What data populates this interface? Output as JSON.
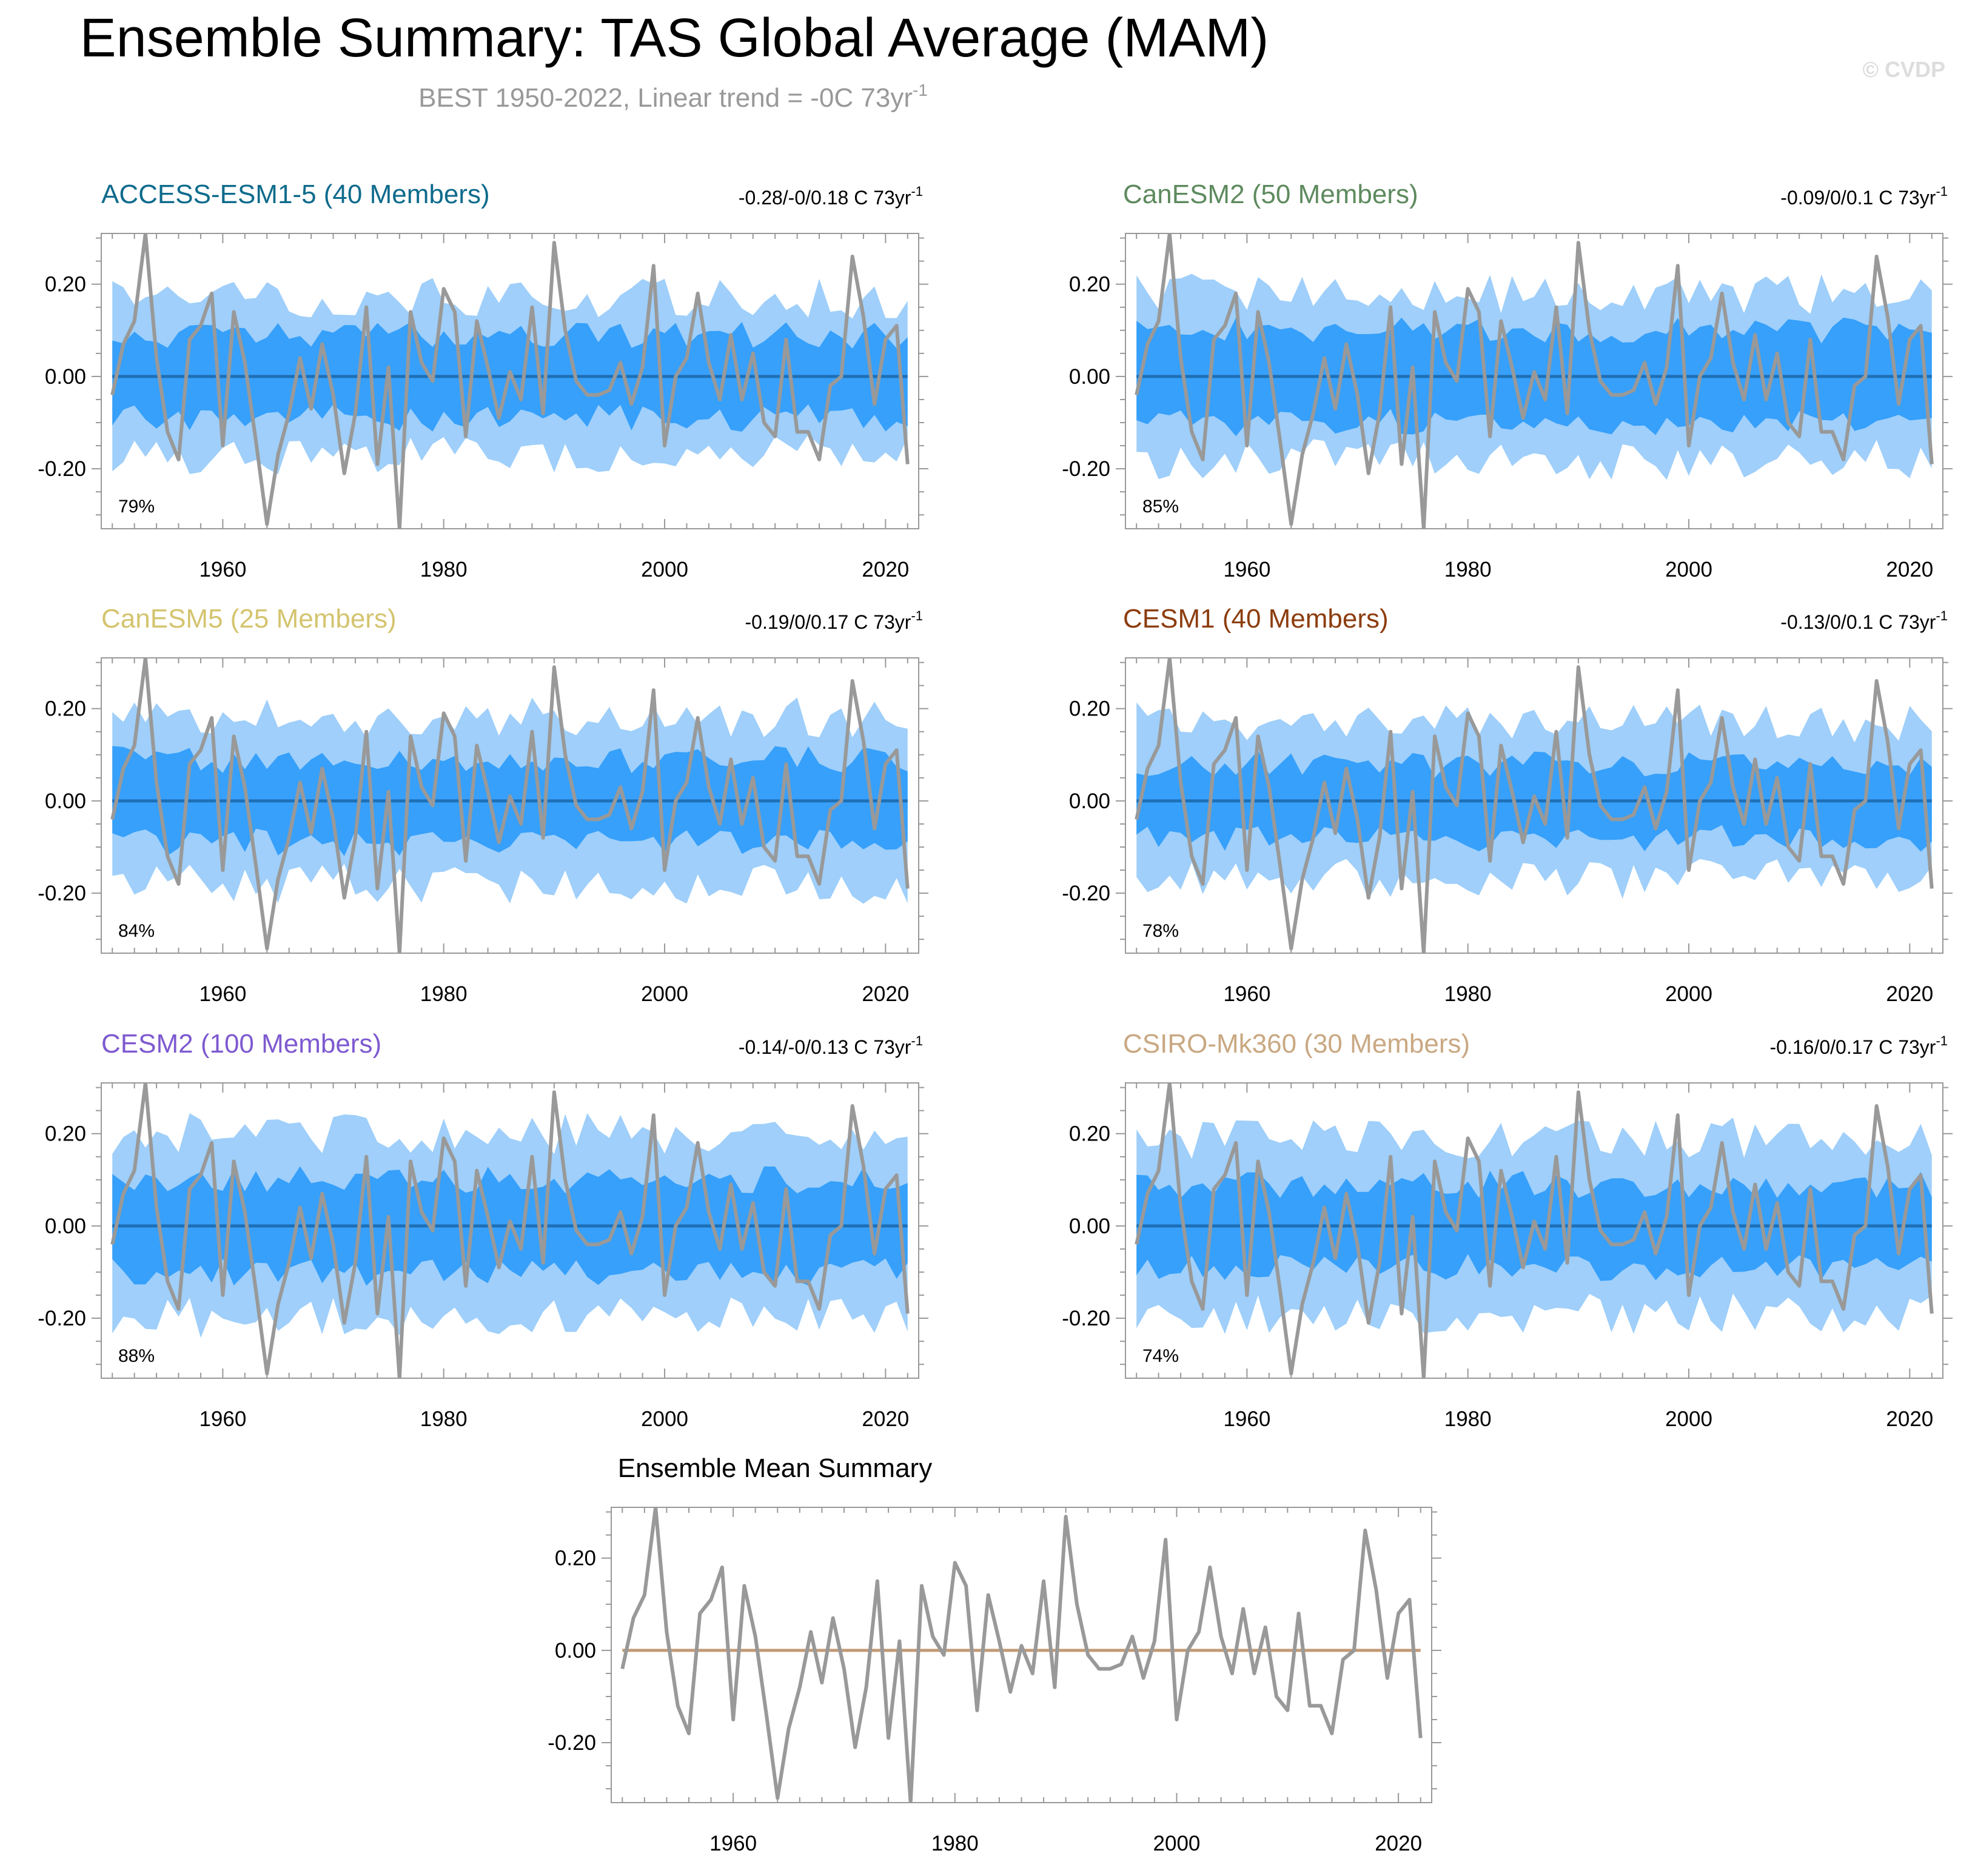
{
  "figure": {
    "title": "Ensemble Summary: TAS Global Average (MAM)",
    "subtitle_main": "BEST 1950-2022, Linear trend = -0C 73yr",
    "subtitle_sup": "-1",
    "watermark": "© CVDP"
  },
  "colors": {
    "outer_band": "#9fcffa",
    "inner_band": "#36a0fb",
    "ens_mean_line": "#1f6fb5",
    "obs_line": "#999999",
    "mean_summary_line": "#c29a76",
    "axis": "#999999",
    "text": "#000000",
    "subtitle": "#999999",
    "watermark": "#dddddd"
  },
  "chart_data": [
    {
      "type": "area",
      "name": "ACCESS-ESM1-5",
      "title": "ACCESS-ESM1-5 (40 Members)",
      "title_color": "#0e6b8c",
      "trend_main": "-0.28/-0/0.18 C 73yr",
      "trend_sup": "-1",
      "pct": "79%",
      "seed": 11,
      "outer": 0.17,
      "inner": 0.09,
      "xlim": [
        1949,
        2023
      ],
      "ylim": [
        -0.33,
        0.31
      ],
      "xticks": [
        "1960",
        "1980",
        "2000",
        "2020"
      ],
      "yticks": [
        "0.20",
        "0.00",
        "-0.20"
      ]
    },
    {
      "type": "area",
      "name": "CanESM2",
      "title": "CanESM2 (50 Members)",
      "title_color": "#5e8a5e",
      "trend_main": "-0.09/0/0.1 C 73yr",
      "trend_sup": "-1",
      "pct": "85%",
      "seed": 23,
      "outer": 0.18,
      "inner": 0.1,
      "xlim": [
        1949,
        2023
      ],
      "ylim": [
        -0.33,
        0.31
      ],
      "xticks": [
        "1960",
        "1980",
        "2000",
        "2020"
      ],
      "yticks": [
        "0.20",
        "0.00",
        "-0.20"
      ]
    },
    {
      "type": "area",
      "name": "CanESM5",
      "title": "CanESM5 (25 Members)",
      "title_color": "#d4c46f",
      "trend_main": "-0.19/0/0.17 C 73yr",
      "trend_sup": "-1",
      "pct": "84%",
      "seed": 37,
      "outer": 0.18,
      "inner": 0.09,
      "xlim": [
        1949,
        2023
      ],
      "ylim": [
        -0.33,
        0.31
      ],
      "xticks": [
        "1960",
        "1980",
        "2000",
        "2020"
      ],
      "yticks": [
        "0.20",
        "0.00",
        "-0.20"
      ]
    },
    {
      "type": "area",
      "name": "CESM1",
      "title": "CESM1 (40 Members)",
      "title_color": "#8c3d0e",
      "trend_main": "-0.13/0/0.1 C 73yr",
      "trend_sup": "-1",
      "pct": "78%",
      "seed": 41,
      "outer": 0.17,
      "inner": 0.08,
      "xlim": [
        1949,
        2023
      ],
      "ylim": [
        -0.33,
        0.31
      ],
      "xticks": [
        "1960",
        "1980",
        "2000",
        "2020"
      ],
      "yticks": [
        "0.20",
        "0.00",
        "-0.20"
      ]
    },
    {
      "type": "area",
      "name": "CESM2",
      "title": "CESM2 (100 Members)",
      "title_color": "#7e5ad0",
      "trend_main": "-0.14/-0/0.13 C 73yr",
      "trend_sup": "-1",
      "pct": "88%",
      "seed": 53,
      "outer": 0.2,
      "inner": 0.1,
      "xlim": [
        1949,
        2023
      ],
      "ylim": [
        -0.33,
        0.31
      ],
      "xticks": [
        "1960",
        "1980",
        "2000",
        "2020"
      ],
      "yticks": [
        "0.20",
        "0.00",
        "-0.20"
      ]
    },
    {
      "type": "area",
      "name": "CSIRO-Mk360",
      "title": "CSIRO-Mk360 (30 Members)",
      "title_color": "#c9a882",
      "trend_main": "-0.16/0/0.17 C 73yr",
      "trend_sup": "-1",
      "pct": "74%",
      "seed": 67,
      "outer": 0.19,
      "inner": 0.09,
      "xlim": [
        1949,
        2023
      ],
      "ylim": [
        -0.33,
        0.31
      ],
      "xticks": [
        "1960",
        "1980",
        "2000",
        "2020"
      ],
      "yticks": [
        "0.20",
        "0.00",
        "-0.20"
      ]
    },
    {
      "type": "line",
      "name": "Ensemble Mean Summary",
      "title": "Ensemble Mean Summary",
      "title_color": "#000000",
      "xlim": [
        1949,
        2023
      ],
      "ylim": [
        -0.33,
        0.31
      ],
      "xticks": [
        "1960",
        "1980",
        "2000",
        "2020"
      ],
      "yticks": [
        "0.20",
        "0.00",
        "-0.20"
      ]
    }
  ],
  "observations": {
    "name": "BEST",
    "years": [
      1950,
      2022
    ],
    "values": [
      -0.04,
      0.07,
      0.12,
      0.31,
      0.04,
      -0.12,
      -0.18,
      0.08,
      0.11,
      0.18,
      -0.15,
      0.14,
      0.03,
      -0.14,
      -0.32,
      -0.17,
      -0.08,
      0.04,
      -0.07,
      0.07,
      -0.04,
      -0.21,
      -0.08,
      0.15,
      -0.19,
      0.02,
      -0.33,
      0.14,
      0.03,
      -0.01,
      0.19,
      0.14,
      -0.13,
      0.12,
      0.02,
      -0.09,
      0.01,
      -0.05,
      0.15,
      -0.08,
      0.29,
      0.1,
      -0.01,
      -0.04,
      -0.04,
      -0.03,
      0.03,
      -0.06,
      0.02,
      0.24,
      -0.15,
      0.0,
      0.04,
      0.18,
      0.03,
      -0.05,
      0.09,
      -0.05,
      0.05,
      -0.1,
      -0.13,
      0.08,
      -0.12,
      -0.12,
      -0.18,
      -0.02,
      0.0,
      0.26,
      0.13,
      -0.06,
      0.08,
      0.11,
      -0.19
    ]
  }
}
